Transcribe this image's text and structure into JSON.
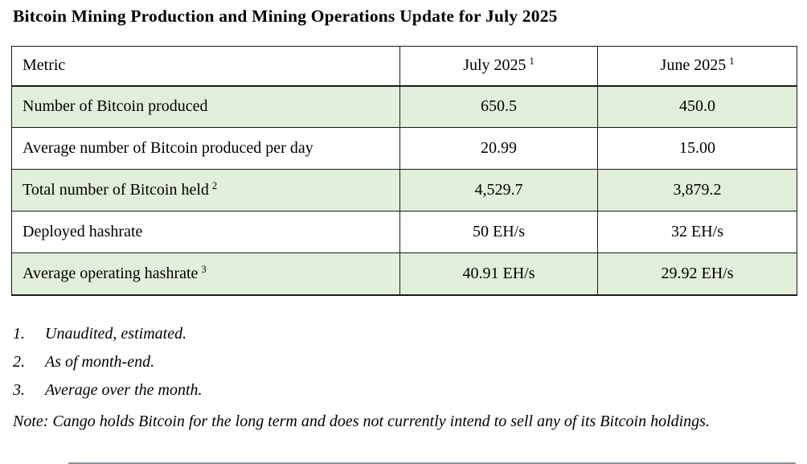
{
  "page": {
    "title": "Bitcoin Mining Production and Mining Operations Update for July 2025"
  },
  "table": {
    "columns": [
      {
        "label": "Metric",
        "sup": ""
      },
      {
        "label": "July 2025",
        "sup": "1"
      },
      {
        "label": "June 2025",
        "sup": "1"
      }
    ],
    "rows": [
      {
        "metric": "Number of Bitcoin produced",
        "sup": "",
        "july": "650.5",
        "june": "450.0"
      },
      {
        "metric": "Average number of Bitcoin produced per day",
        "sup": "",
        "july": "20.99",
        "june": "15.00"
      },
      {
        "metric": "Total number of Bitcoin held",
        "sup": "2",
        "july": "4,529.7",
        "june": "3,879.2"
      },
      {
        "metric": "Deployed hashrate",
        "sup": "",
        "july": "50 EH/s",
        "june": "32 EH/s"
      },
      {
        "metric": "Average operating hashrate",
        "sup": "3",
        "july": "40.91 EH/s",
        "june": "29.92 EH/s"
      }
    ]
  },
  "footnotes": [
    {
      "number": "1.",
      "text": "Unaudited, estimated."
    },
    {
      "number": "2.",
      "text": "As of month-end."
    },
    {
      "number": "3.",
      "text": "Average over the month."
    }
  ],
  "note": "Note: Cango holds Bitcoin for the long term and does not currently intend to sell any of its Bitcoin holdings.",
  "colors": {
    "shaded_row": "#e2efda",
    "table_border": "#1a1a1a",
    "bottom_rule": "#8a9299"
  }
}
